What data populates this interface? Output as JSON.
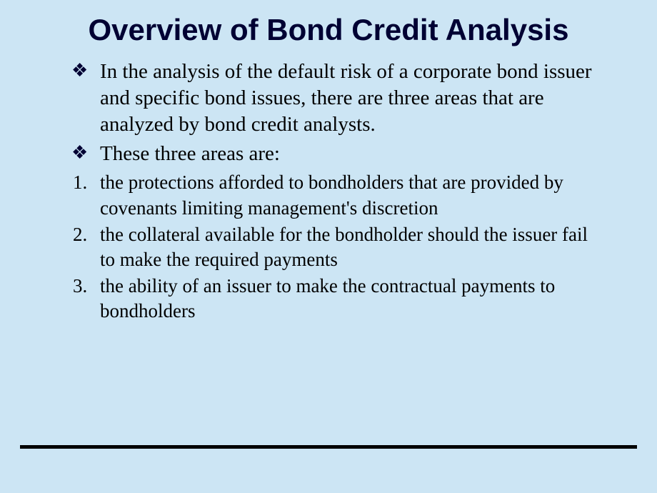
{
  "slide": {
    "background_color": "#cce5f4",
    "title": {
      "text": "Overview of Bond Credit Analysis",
      "font_family": "Arial",
      "font_weight": "bold",
      "color": "#000033",
      "font_size": 42
    },
    "bullets": [
      {
        "marker": "❖",
        "text": "In the analysis of the default risk of a corporate bond issuer and specific bond issues, there are three areas that are analyzed by bond credit analysts."
      },
      {
        "marker": "❖",
        "text": "These three areas are:"
      }
    ],
    "numbered": [
      {
        "marker": "1.",
        "text": "the protections afforded to bondholders that are provided by covenants limiting management's discretion"
      },
      {
        "marker": "2.",
        "text": "the collateral available for the bondholder should the issuer fail to make the required payments"
      },
      {
        "marker": "3.",
        "text": "the ability of an issuer to make the contractual payments to bondholders"
      }
    ],
    "footer_line": {
      "color": "#000000",
      "height": 5
    }
  }
}
